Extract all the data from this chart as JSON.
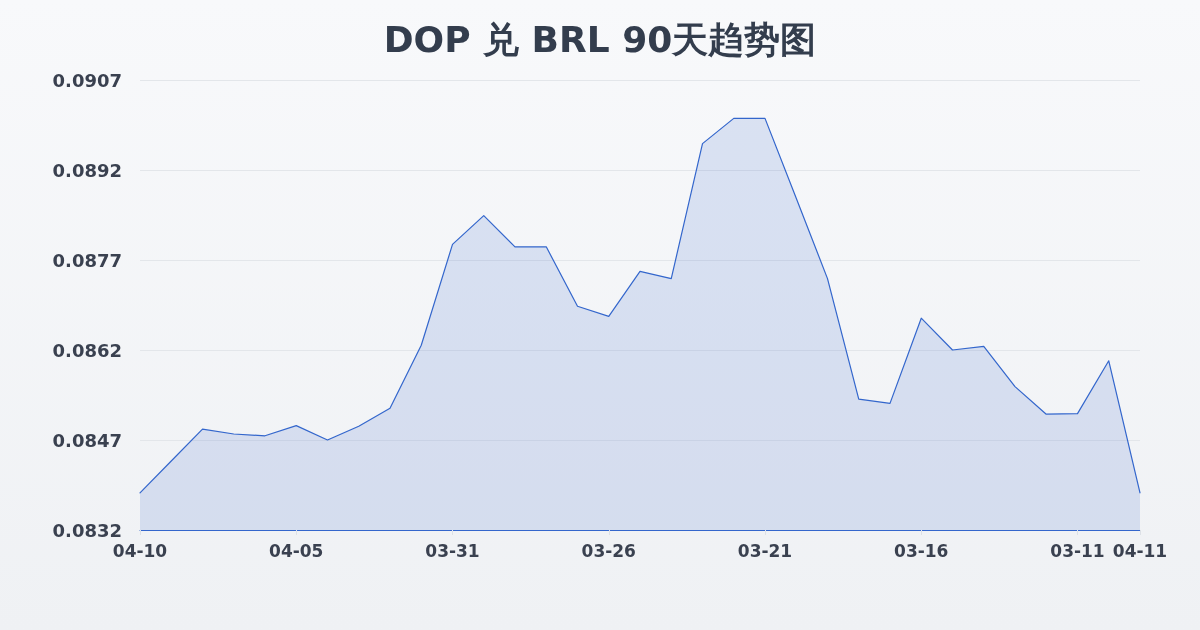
{
  "chart_data": {
    "type": "area",
    "title": "DOP 兑 BRL 90天趋势图",
    "categories": [
      "04-10",
      null,
      null,
      null,
      null,
      "04-05",
      null,
      null,
      null,
      null,
      "03-31",
      null,
      null,
      null,
      null,
      "03-26",
      null,
      null,
      null,
      null,
      "03-21",
      null,
      null,
      null,
      null,
      "03-16",
      null,
      null,
      null,
      null,
      "03-11",
      null,
      "04-11"
    ],
    "values": [
      0.08382,
      0.08435,
      0.08488,
      0.0848,
      0.08477,
      0.08494,
      0.0847,
      0.08493,
      0.08523,
      0.08628,
      0.08796,
      0.08844,
      0.08792,
      0.08792,
      0.08693,
      0.08676,
      0.08751,
      0.08739,
      0.08964,
      0.09006,
      0.09006,
      0.08873,
      0.08739,
      0.08538,
      0.08531,
      0.08673,
      0.0862,
      0.08626,
      0.08559,
      0.08513,
      0.08514,
      0.08602,
      0.08382
    ],
    "color": "#3366cc",
    "ylim": [
      0.0832,
      0.0907
    ],
    "yticks": [
      0.0832,
      0.0847,
      0.0862,
      0.0877,
      0.0892,
      0.0907
    ],
    "grid": "y",
    "marker": "none"
  }
}
